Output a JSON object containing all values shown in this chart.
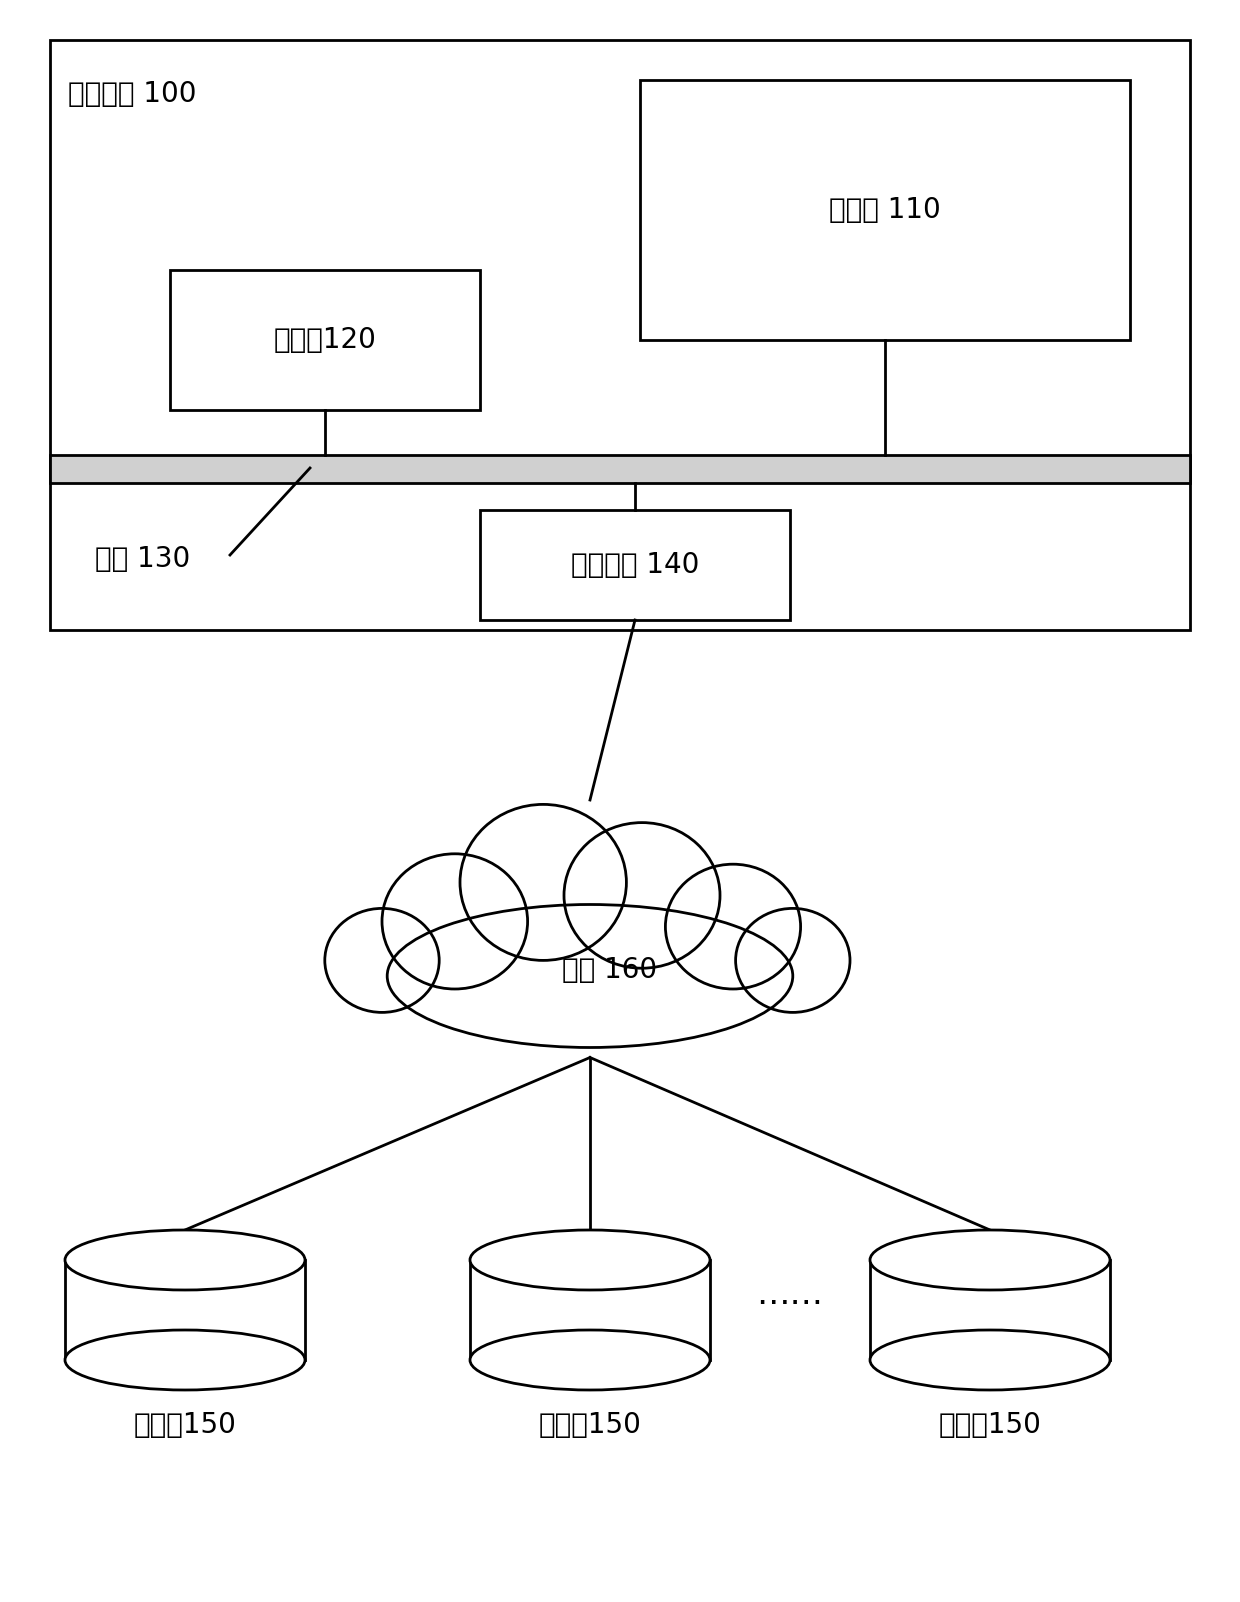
{
  "bg_color": "#ffffff",
  "line_color": "#000000",
  "box_color": "#ffffff",
  "outer_label": "电子设备 100",
  "memory_label": "存储器 110",
  "processor_label": "处理器120",
  "access_label": "接入设备 140",
  "bus_label": "总线 130",
  "cloud_label": "网络 160",
  "db_label": "数据库150",
  "dots_text": "……",
  "font_size": 20
}
